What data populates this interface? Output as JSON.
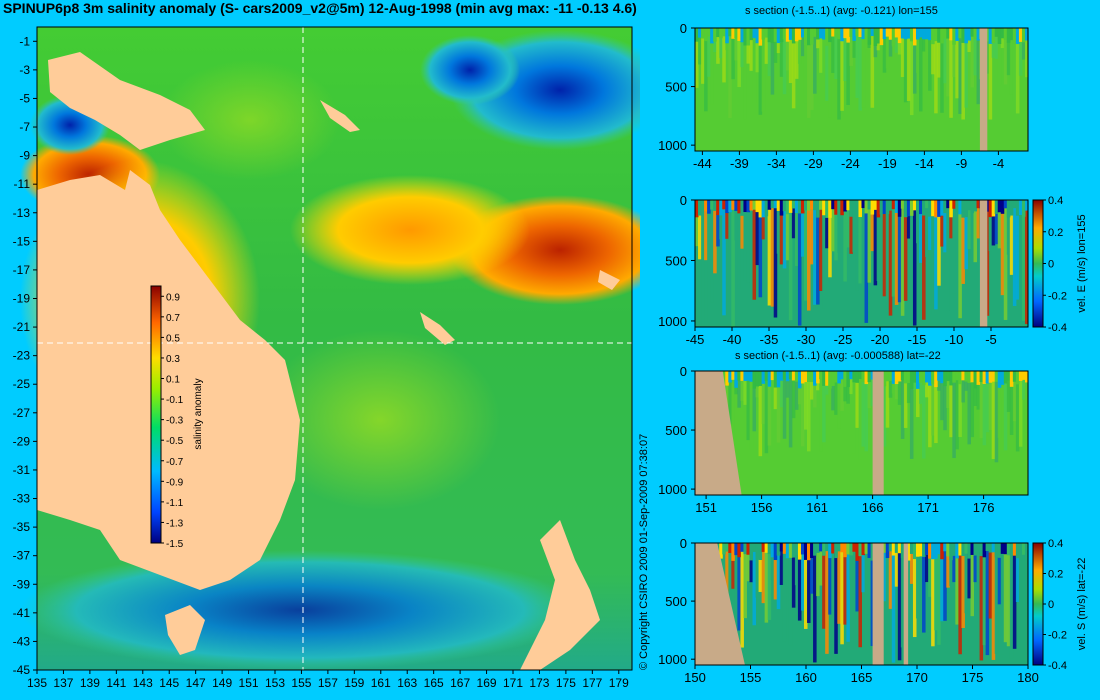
{
  "title": "SPINUP6p8 3m salinity anomaly (S- cars2009_v2@5m) 12-Aug-1998 (min avg max: -11 -0.13 4.6)",
  "copyright": "© Copyright CSIRO 2009  01-Sep-2009 07:38:07",
  "colors": {
    "background": "#00ccff",
    "land": "#ffcc99",
    "section_land": "#c8aa88"
  },
  "chart_data": [
    {
      "type": "heatmap",
      "name": "map",
      "xlim": [
        135,
        180
      ],
      "ylim": [
        -45,
        0
      ],
      "xticks": [
        135,
        137,
        139,
        141,
        143,
        145,
        147,
        149,
        151,
        153,
        155,
        157,
        159,
        161,
        163,
        165,
        167,
        169,
        171,
        173,
        175,
        177,
        179
      ],
      "yticks": [
        -1,
        -3,
        -5,
        -7,
        -9,
        -11,
        -13,
        -15,
        -17,
        -19,
        -21,
        -23,
        -25,
        -27,
        -29,
        -31,
        -33,
        -35,
        -37,
        -39,
        -41,
        -43,
        -45
      ],
      "section_lon": 155,
      "section_lat": -22,
      "colorbar": {
        "label": "salinity anomaly",
        "ticks": [
          "0.9",
          "0.7",
          "0.5",
          "0.3",
          "0.1",
          "-0.1",
          "-0.3",
          "-0.5",
          "-0.7",
          "-0.9",
          "-1.1",
          "-1.3",
          "-1.5"
        ],
        "range": [
          -1.5,
          1.0
        ]
      }
    },
    {
      "type": "heatmap",
      "name": "salinity-section-lon",
      "title": "s section (-1.5..1) (avg: -0.121) lon=155",
      "xlim": [
        -45,
        0
      ],
      "xticks": [
        -44,
        -39,
        -34,
        -29,
        -24,
        -19,
        -14,
        -9,
        -4
      ],
      "ylim": [
        0,
        1050
      ],
      "yticks": [
        0,
        500,
        1000
      ]
    },
    {
      "type": "heatmap",
      "name": "velocity-east-section",
      "xlim": [
        -45,
        0
      ],
      "xticks": [
        -45,
        -40,
        -35,
        -30,
        -25,
        -20,
        -15,
        -10,
        -5
      ],
      "ylim": [
        0,
        1050
      ],
      "yticks": [
        0,
        500,
        1000
      ],
      "colorbar": {
        "label": "vel. E (m/s) lon=155",
        "ticks": [
          "0.4",
          "0.2",
          "0",
          "-0.2",
          "-0.4"
        ],
        "range": [
          -0.4,
          0.4
        ]
      }
    },
    {
      "type": "heatmap",
      "name": "salinity-section-lat",
      "title": "s section (-1.5..1) (avg: -0.000588) lat=-22",
      "xlim": [
        150,
        180
      ],
      "xticks": [
        151,
        156,
        161,
        166,
        171,
        176
      ],
      "ylim": [
        0,
        1050
      ],
      "yticks": [
        0,
        500,
        1000
      ]
    },
    {
      "type": "heatmap",
      "name": "velocity-south-section",
      "xlim": [
        150,
        180
      ],
      "xticks": [
        150,
        155,
        160,
        165,
        170,
        175,
        180
      ],
      "ylim": [
        0,
        1050
      ],
      "yticks": [
        0,
        500,
        1000
      ],
      "colorbar": {
        "label": "vel. S (m/s) lat=-22",
        "ticks": [
          "0.4",
          "0.2",
          "0",
          "-0.2",
          "-0.4"
        ],
        "range": [
          -0.4,
          0.4
        ]
      }
    }
  ]
}
